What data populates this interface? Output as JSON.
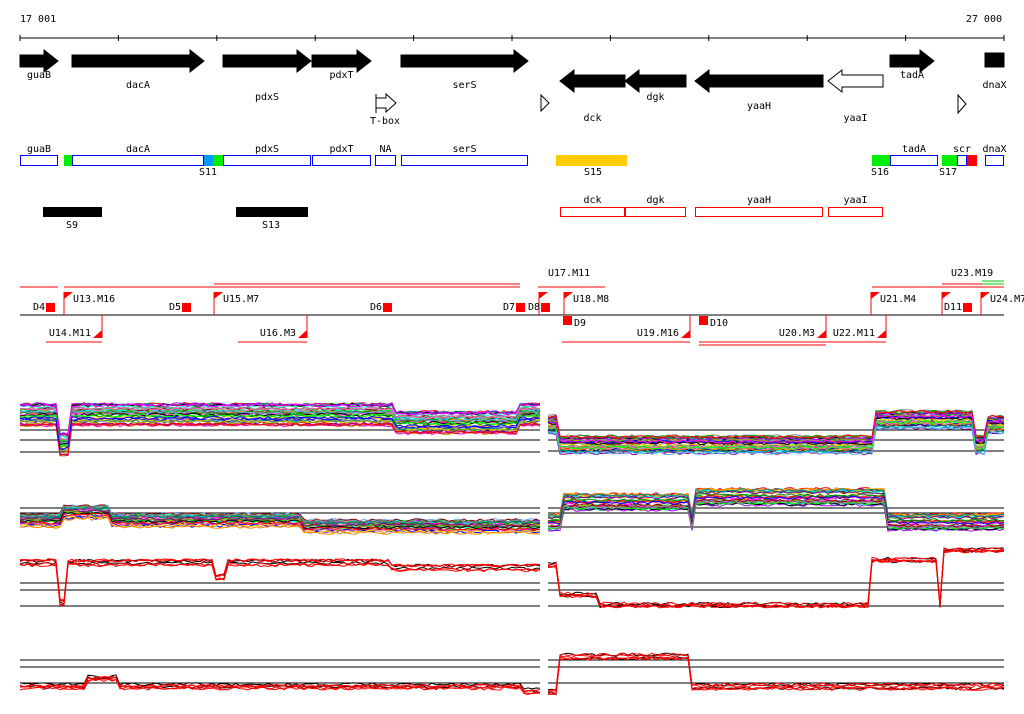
{
  "axis": {
    "start_label": "17 001",
    "end_label": "27 000",
    "start": 17001,
    "end": 27000
  },
  "genes": [
    {
      "name": "guaB",
      "strand": "+",
      "from": 20,
      "to": 58,
      "fill": "#000"
    },
    {
      "name": "dacA",
      "strand": "+",
      "from": 72,
      "to": 204,
      "fill": "#000"
    },
    {
      "name": "pdxS",
      "strand": "+",
      "from": 223,
      "to": 311,
      "fill": "#000"
    },
    {
      "name": "pdxT",
      "strand": "+",
      "from": 312,
      "to": 371,
      "fill": "#000"
    },
    {
      "name": "serS",
      "strand": "+",
      "from": 401,
      "to": 528,
      "fill": "#000"
    },
    {
      "name": "dck",
      "strand": "-",
      "from": 560,
      "to": 625,
      "fill": "#000"
    },
    {
      "name": "dgk",
      "strand": "-",
      "from": 625,
      "to": 686,
      "fill": "#000"
    },
    {
      "name": "yaaH",
      "strand": "-",
      "from": 695,
      "to": 823,
      "fill": "#000"
    },
    {
      "name": "yaaI",
      "strand": "-",
      "from": 828,
      "to": 883,
      "fill": "#fff"
    },
    {
      "name": "tadA",
      "strand": "+",
      "from": 890,
      "to": 934,
      "fill": "#000"
    },
    {
      "name": "dnaX",
      "strand": "+",
      "from": 985,
      "to": 1004,
      "fill": "#000"
    }
  ],
  "tbox": {
    "label": "T-box"
  },
  "transcripts": [
    {
      "label": "guaB",
      "color": "#0000ff",
      "fill": "#fff"
    },
    {
      "label": "",
      "color": "#00ee00",
      "fill": "#00ee00"
    },
    {
      "label": "dacA",
      "color": "#0000ff",
      "fill": "#fff"
    },
    {
      "label": "",
      "color": "#0099ff",
      "fill": "#0099ff"
    },
    {
      "label": "",
      "color": "#00ee00",
      "fill": "#00ee00"
    },
    {
      "label": "pdxS",
      "color": "#0000ff",
      "fill": "#fff"
    },
    {
      "label": "pdxT",
      "color": "#0000ff",
      "fill": "#fff"
    },
    {
      "label": "NA",
      "color": "#0000ff",
      "fill": "#fff"
    },
    {
      "label": "serS",
      "color": "#0000ff",
      "fill": "#fff"
    },
    {
      "label": "",
      "color": "#ffcc00",
      "fill": "#ffcc00"
    },
    {
      "label": "",
      "color": "#00ee00",
      "fill": "#00ee00"
    },
    {
      "label": "tadA",
      "color": "#0000ff",
      "fill": "#fff"
    },
    {
      "label": "",
      "color": "#00ee00",
      "fill": "#00ee00"
    },
    {
      "label": "scr",
      "color": "#0000ff",
      "fill": "#fff"
    },
    {
      "label": "",
      "color": "#ff0000",
      "fill": "#ff0000"
    },
    {
      "label": "dnaX",
      "color": "#0000ff",
      "fill": "#fff"
    }
  ],
  "segments": [
    "S11",
    "S15",
    "S16",
    "S17",
    "S9",
    "S13"
  ],
  "antisense": [
    "dck",
    "dgk",
    "yaaH",
    "yaaI"
  ],
  "breakpoints_up": [
    "U13.M16",
    "U15.M7",
    "U17.M11",
    "U18.M8",
    "U21.M4",
    "U23.M19",
    "U24.M7"
  ],
  "breakpoints_down": [
    "U14.M11",
    "U16.M3",
    "U19.M16",
    "U20.M3",
    "U22.M11"
  ],
  "downshifts": [
    "D4",
    "D5",
    "D6",
    "D7",
    "D8",
    "D9",
    "D10",
    "D11"
  ]
}
